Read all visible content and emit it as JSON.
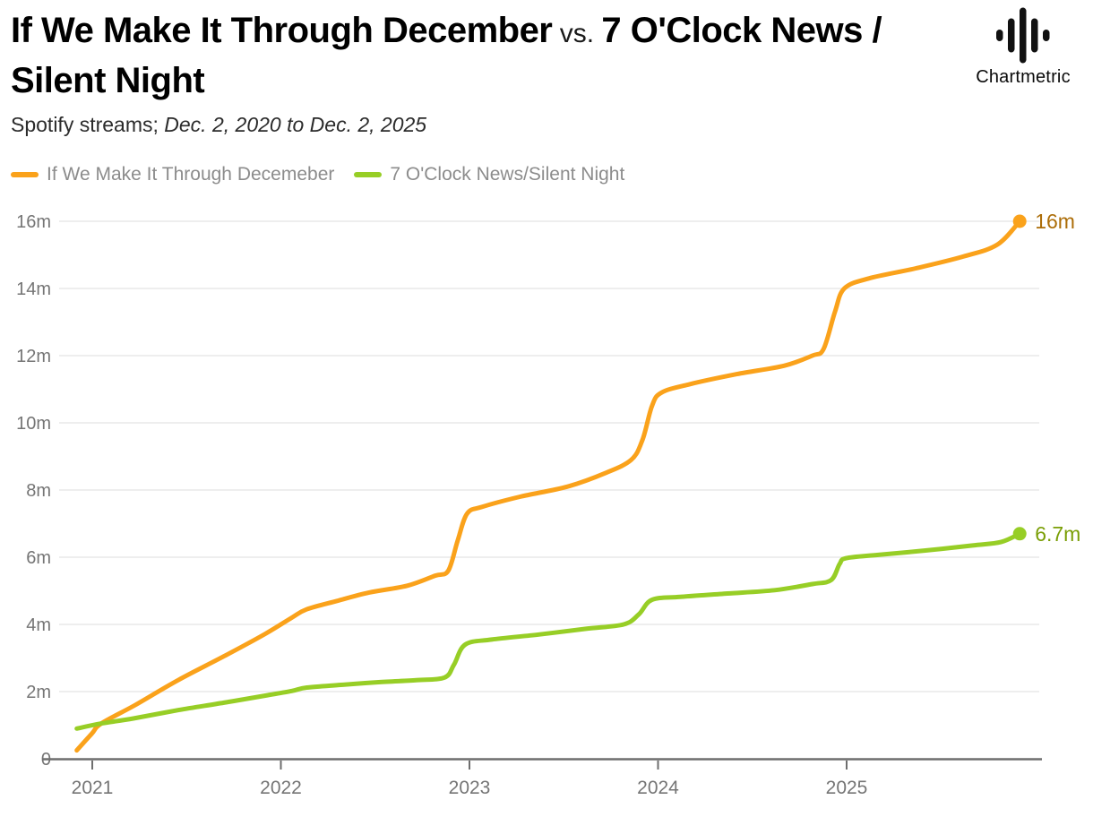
{
  "header": {
    "title_bold_1": "If We Make It Through December",
    "title_vs": " vs. ",
    "title_bold_2": "7 O'Clock News / Silent Night",
    "subtitle_regular": "Spotify streams; ",
    "subtitle_italic": "Dec. 2, 2020 to Dec. 2, 2025",
    "logo_text": "Chartmetric"
  },
  "chart_data": {
    "type": "line",
    "title": "If We Make It Through December vs. 7 O'Clock News / Silent Night",
    "subtitle": "Spotify streams; Dec. 2, 2020 to Dec. 2, 2025",
    "grid": true,
    "legend_position": "top-left",
    "x_axis": {
      "unit": "years since Dec 2, 2020",
      "domain": [
        0,
        5
      ],
      "ticks": [
        {
          "label": "2021",
          "u": 0.082
        },
        {
          "label": "2022",
          "u": 1.082
        },
        {
          "label": "2023",
          "u": 2.082
        },
        {
          "label": "2024",
          "u": 3.082
        },
        {
          "label": "2025",
          "u": 4.082
        }
      ]
    },
    "y_axis": {
      "unit": "streams (millions)",
      "ylim": [
        0,
        16.4
      ],
      "ticks": [
        {
          "label": "0",
          "value": 0
        },
        {
          "label": "2m",
          "value": 2
        },
        {
          "label": "4m",
          "value": 4
        },
        {
          "label": "6m",
          "value": 6
        },
        {
          "label": "8m",
          "value": 8
        },
        {
          "label": "10m",
          "value": 10
        },
        {
          "label": "12m",
          "value": 12
        },
        {
          "label": "14m",
          "value": 14
        },
        {
          "label": "16m",
          "value": 16
        }
      ]
    },
    "series": [
      {
        "name": "If We Make It Through Decemeber",
        "color": "#FAA21B",
        "end_label": "16m",
        "end_label_color": "#AC6D08",
        "points": [
          [
            0,
            0.25
          ],
          [
            0.08,
            0.75
          ],
          [
            0.13,
            1.05
          ],
          [
            0.31,
            1.6
          ],
          [
            0.54,
            2.35
          ],
          [
            0.78,
            3.05
          ],
          [
            1.0,
            3.72
          ],
          [
            1.14,
            4.2
          ],
          [
            1.22,
            4.45
          ],
          [
            1.38,
            4.7
          ],
          [
            1.55,
            4.95
          ],
          [
            1.75,
            5.15
          ],
          [
            1.9,
            5.45
          ],
          [
            1.97,
            5.6
          ],
          [
            2.02,
            6.5
          ],
          [
            2.07,
            7.3
          ],
          [
            2.15,
            7.5
          ],
          [
            2.35,
            7.8
          ],
          [
            2.6,
            8.1
          ],
          [
            2.8,
            8.5
          ],
          [
            2.94,
            8.9
          ],
          [
            3.0,
            9.5
          ],
          [
            3.05,
            10.5
          ],
          [
            3.1,
            10.9
          ],
          [
            3.25,
            11.15
          ],
          [
            3.5,
            11.45
          ],
          [
            3.75,
            11.7
          ],
          [
            3.9,
            12.0
          ],
          [
            3.96,
            12.2
          ],
          [
            4.02,
            13.3
          ],
          [
            4.07,
            14.0
          ],
          [
            4.2,
            14.3
          ],
          [
            4.45,
            14.6
          ],
          [
            4.7,
            14.95
          ],
          [
            4.88,
            15.3
          ],
          [
            5.0,
            16.0
          ]
        ]
      },
      {
        "name": "7 O'Clock News/Silent Night",
        "color": "#97CE26",
        "end_label": "6.7m",
        "end_label_color": "#7A9E06",
        "points": [
          [
            0,
            0.9
          ],
          [
            0.13,
            1.05
          ],
          [
            0.3,
            1.2
          ],
          [
            0.54,
            1.45
          ],
          [
            0.78,
            1.67
          ],
          [
            1.0,
            1.88
          ],
          [
            1.14,
            2.02
          ],
          [
            1.22,
            2.12
          ],
          [
            1.4,
            2.2
          ],
          [
            1.6,
            2.28
          ],
          [
            1.8,
            2.34
          ],
          [
            1.95,
            2.42
          ],
          [
            2.0,
            2.8
          ],
          [
            2.06,
            3.4
          ],
          [
            2.2,
            3.55
          ],
          [
            2.45,
            3.7
          ],
          [
            2.7,
            3.87
          ],
          [
            2.9,
            4.0
          ],
          [
            2.98,
            4.3
          ],
          [
            3.05,
            4.73
          ],
          [
            3.2,
            4.82
          ],
          [
            3.45,
            4.92
          ],
          [
            3.7,
            5.02
          ],
          [
            3.9,
            5.2
          ],
          [
            4.0,
            5.32
          ],
          [
            4.045,
            5.8
          ],
          [
            4.08,
            5.97
          ],
          [
            4.25,
            6.07
          ],
          [
            4.5,
            6.2
          ],
          [
            4.75,
            6.35
          ],
          [
            4.9,
            6.45
          ],
          [
            5.0,
            6.7
          ]
        ]
      }
    ],
    "style": {
      "grid_color": "#E8E8E8",
      "axis_color": "#6E6E6E",
      "tick_label_color": "#757575"
    }
  }
}
